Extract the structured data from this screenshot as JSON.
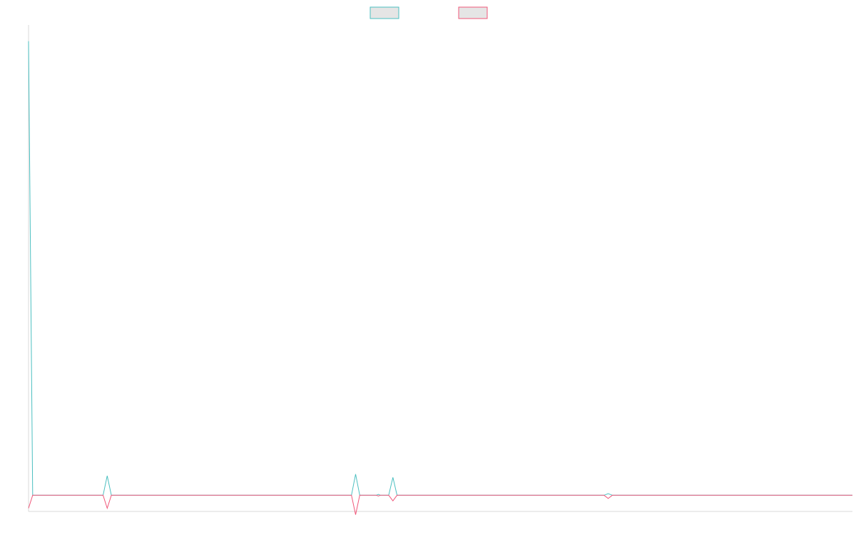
{
  "chart_data": {
    "type": "line",
    "title": "",
    "xlabel": "",
    "ylabel": "",
    "grid": false,
    "legend": {
      "placement": "top-center",
      "entries": [
        {
          "name": "",
          "stroke": "#4bbfc0",
          "fill": "#e5e5e5"
        },
        {
          "name": "",
          "stroke": "#f0587a",
          "fill": "#e5e5e5"
        }
      ]
    },
    "x_count": 200,
    "ylim": [
      -1,
      29
    ],
    "series": [
      {
        "name": "",
        "color": "#4bbfc0",
        "points": [
          {
            "i": 0,
            "v": 28
          },
          {
            "i": 1,
            "v": 0
          },
          {
            "i": 18,
            "v": 0
          },
          {
            "i": 19,
            "v": 1.2
          },
          {
            "i": 20,
            "v": 0
          },
          {
            "i": 78,
            "v": 0
          },
          {
            "i": 79,
            "v": 1.3
          },
          {
            "i": 80,
            "v": 0
          },
          {
            "i": 84,
            "v": 0
          },
          {
            "i": 84.5,
            "v": 0.05
          },
          {
            "i": 85,
            "v": 0
          },
          {
            "i": 87,
            "v": 0
          },
          {
            "i": 88,
            "v": 1.1
          },
          {
            "i": 89,
            "v": 0
          },
          {
            "i": 139,
            "v": 0
          },
          {
            "i": 140,
            "v": 0.1
          },
          {
            "i": 141,
            "v": 0
          },
          {
            "i": 199,
            "v": 0
          }
        ]
      },
      {
        "name": "",
        "color": "#f0587a",
        "points": [
          {
            "i": 0,
            "v": -0.8
          },
          {
            "i": 1,
            "v": 0
          },
          {
            "i": 18,
            "v": 0
          },
          {
            "i": 19,
            "v": -0.8
          },
          {
            "i": 20,
            "v": 0
          },
          {
            "i": 78,
            "v": 0
          },
          {
            "i": 79,
            "v": -1.2
          },
          {
            "i": 80,
            "v": 0
          },
          {
            "i": 84,
            "v": 0
          },
          {
            "i": 84.5,
            "v": -0.05
          },
          {
            "i": 85,
            "v": 0
          },
          {
            "i": 87,
            "v": 0
          },
          {
            "i": 88,
            "v": -0.35
          },
          {
            "i": 89,
            "v": 0
          },
          {
            "i": 139,
            "v": 0
          },
          {
            "i": 140,
            "v": -0.2
          },
          {
            "i": 141,
            "v": 0
          },
          {
            "i": 199,
            "v": 0
          }
        ]
      }
    ]
  }
}
